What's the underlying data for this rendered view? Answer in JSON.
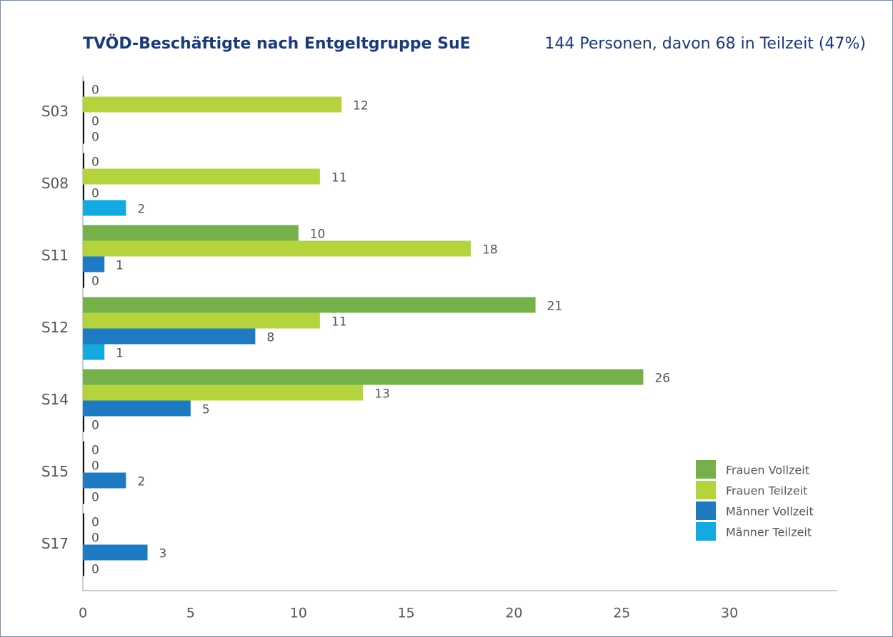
{
  "chart_data": {
    "type": "hbar",
    "title": "TVÖD-Beschäftigte nach Entgeltgruppe SuE",
    "subtitle": "144 Personen, davon 68 in Teilzeit (47%)",
    "categories": [
      "S03",
      "S08",
      "S11",
      "S12",
      "S14",
      "S15",
      "S17"
    ],
    "series": [
      {
        "name": "Frauen Vollzeit",
        "color": "#76b04a",
        "values": [
          0,
          0,
          10,
          21,
          26,
          0,
          0
        ]
      },
      {
        "name": "Frauen Teilzeit",
        "color": "#b5d33d",
        "values": [
          12,
          11,
          18,
          11,
          13,
          0,
          0
        ]
      },
      {
        "name": "Männer Vollzeit",
        "color": "#1e7bc3",
        "values": [
          0,
          0,
          1,
          8,
          5,
          2,
          3
        ]
      },
      {
        "name": "Männer Teilzeit",
        "color": "#14a9e1",
        "values": [
          0,
          2,
          0,
          1,
          0,
          0,
          0
        ]
      }
    ],
    "xlim": [
      0,
      35
    ],
    "xticks": [
      0,
      5,
      10,
      15,
      20,
      25,
      30
    ],
    "legend": "lower right"
  }
}
